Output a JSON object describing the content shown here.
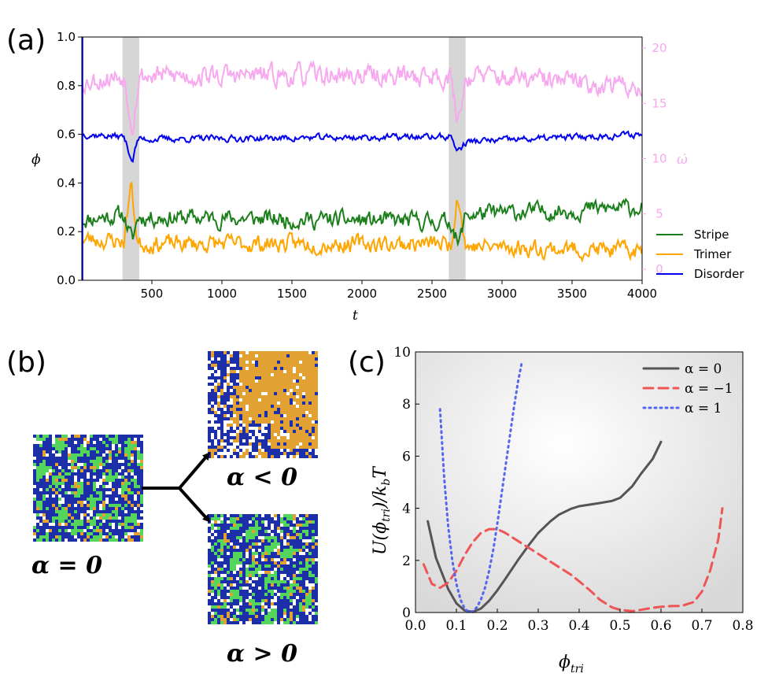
{
  "chart_data": [
    {
      "id": "a",
      "type": "line",
      "panel_label": "(a)",
      "xlabel": "t",
      "ylabel": "ϕ",
      "y2label": "ω̇",
      "xlim": [
        0,
        4000
      ],
      "ylim": [
        0,
        1.0
      ],
      "y2lim": [
        -1,
        21
      ],
      "xticks": [
        500,
        1000,
        1500,
        2000,
        2500,
        3000,
        3500,
        4000
      ],
      "yticks": [
        0.0,
        0.2,
        0.4,
        0.6,
        0.8,
        1.0
      ],
      "ytick_labels": [
        "0.0",
        "0.2",
        "0.4",
        "0.6",
        "0.8",
        "1.0"
      ],
      "y2ticks": [
        0,
        5,
        10,
        15,
        20
      ],
      "shaded_intervals": [
        [
          290,
          410
        ],
        [
          2620,
          2740
        ]
      ],
      "colors": {
        "stripe": "#1a7f1a",
        "trimer": "#ffa500",
        "disorder": "#0000ee",
        "omega": "#f7a8ef",
        "shade": "#bbbbbb"
      },
      "legend": {
        "placement": "right-bottom",
        "entries": [
          "Stripe",
          "Trimer",
          "Disorder"
        ]
      },
      "series": [
        {
          "name": "Stripe",
          "key": "stripe",
          "mean": 0.28,
          "amp": 0.04,
          "seed": 11,
          "x": [
            0,
            300,
            360,
            400,
            2640,
            2690,
            2740,
            4000
          ],
          "y": [
            0.25,
            0.27,
            0.16,
            0.26,
            0.24,
            0.14,
            0.27,
            0.3
          ]
        },
        {
          "name": "Trimer",
          "key": "trimer",
          "mean": 0.135,
          "amp": 0.04,
          "seed": 23,
          "x": [
            0,
            300,
            350,
            400,
            2640,
            2680,
            2740,
            4000
          ],
          "y": [
            0.17,
            0.16,
            0.4,
            0.15,
            0.15,
            0.37,
            0.14,
            0.12
          ]
        },
        {
          "name": "Disorder",
          "key": "disorder",
          "mean": 0.605,
          "amp": 0.015,
          "seed": 37,
          "x": [
            0,
            300,
            360,
            400,
            2640,
            2680,
            2750,
            4000
          ],
          "y": [
            0.6,
            0.59,
            0.49,
            0.58,
            0.59,
            0.53,
            0.57,
            0.6
          ]
        },
        {
          "name": "omega",
          "key": "omega",
          "axis": "y2",
          "mean": 17.5,
          "amp": 1.1,
          "seed": 53,
          "x": [
            0,
            300,
            360,
            410,
            2630,
            2680,
            2750,
            4000
          ],
          "y": [
            17.0,
            17.5,
            13.0,
            17.5,
            17.5,
            13.5,
            17.5,
            16.5
          ]
        }
      ]
    },
    {
      "id": "c",
      "type": "line",
      "panel_label": "(c)",
      "xlabel": "ϕ_tri",
      "ylabel": "U(ϕ_tri)/k_bT",
      "xlim": [
        0.0,
        0.8
      ],
      "ylim": [
        0,
        10
      ],
      "xticks": [
        0.0,
        0.1,
        0.2,
        0.3,
        0.4,
        0.5,
        0.6,
        0.7,
        0.8
      ],
      "xtick_labels": [
        "0.0",
        "0.1",
        "0.2",
        "0.3",
        "0.4",
        "0.5",
        "0.6",
        "0.7",
        "0.8"
      ],
      "yticks": [
        0,
        2,
        4,
        6,
        8,
        10
      ],
      "legend": {
        "placement": "top-right",
        "entries": [
          "α = 0",
          "α = −1",
          "α = 1"
        ]
      },
      "series": [
        {
          "name": "α = 0",
          "style": "solid",
          "color": "#555555",
          "x": [
            0.03,
            0.05,
            0.08,
            0.1,
            0.12,
            0.14,
            0.16,
            0.18,
            0.2,
            0.22,
            0.25,
            0.28,
            0.3,
            0.33,
            0.35,
            0.38,
            0.4,
            0.43,
            0.45,
            0.48,
            0.5,
            0.53,
            0.55,
            0.58,
            0.6
          ],
          "y": [
            3.5,
            2.1,
            0.9,
            0.35,
            0.08,
            0.02,
            0.15,
            0.45,
            0.85,
            1.3,
            2.0,
            2.65,
            3.05,
            3.5,
            3.75,
            3.98,
            4.08,
            4.15,
            4.2,
            4.28,
            4.4,
            4.85,
            5.3,
            5.9,
            6.55
          ]
        },
        {
          "name": "α = −1",
          "style": "dashed",
          "color": "#ee5555",
          "x": [
            0.02,
            0.04,
            0.06,
            0.08,
            0.1,
            0.12,
            0.14,
            0.16,
            0.18,
            0.2,
            0.22,
            0.25,
            0.28,
            0.3,
            0.33,
            0.35,
            0.38,
            0.4,
            0.43,
            0.45,
            0.48,
            0.5,
            0.53,
            0.55,
            0.58,
            0.6,
            0.63,
            0.65,
            0.68,
            0.7,
            0.72,
            0.74,
            0.75
          ],
          "y": [
            1.85,
            1.1,
            0.95,
            1.15,
            1.6,
            2.2,
            2.7,
            3.05,
            3.2,
            3.2,
            3.05,
            2.75,
            2.45,
            2.25,
            1.95,
            1.75,
            1.45,
            1.2,
            0.8,
            0.5,
            0.2,
            0.1,
            0.05,
            0.1,
            0.18,
            0.22,
            0.25,
            0.25,
            0.4,
            0.8,
            1.6,
            2.8,
            4.0
          ]
        },
        {
          "name": "α = 1",
          "style": "dotted",
          "color": "#5566ee",
          "x": [
            0.06,
            0.07,
            0.08,
            0.09,
            0.1,
            0.11,
            0.12,
            0.13,
            0.14,
            0.15,
            0.16,
            0.17,
            0.18,
            0.19,
            0.2,
            0.21,
            0.22,
            0.23,
            0.24,
            0.25,
            0.26
          ],
          "y": [
            7.8,
            5.2,
            3.3,
            2.0,
            1.1,
            0.5,
            0.15,
            0.02,
            0.05,
            0.2,
            0.5,
            0.95,
            1.6,
            2.4,
            3.4,
            4.5,
            5.6,
            6.7,
            7.8,
            8.8,
            9.6
          ]
        }
      ]
    }
  ],
  "panel_b": {
    "panel_label": "(b)",
    "labels": {
      "center": "α = 0",
      "top": "α < 0",
      "bottom": "α > 0"
    },
    "colors": {
      "blue": "#1c2fa8",
      "green": "#54d65c",
      "orange": "#e2a233",
      "white": "#ffffff"
    }
  }
}
